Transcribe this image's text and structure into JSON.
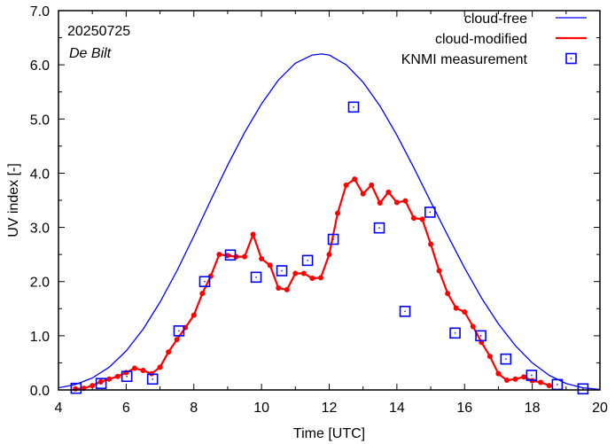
{
  "chart_data": {
    "type": "line",
    "xlabel": "Time  [UTC]",
    "ylabel": "UV index  [-]",
    "xlim": [
      4,
      20
    ],
    "ylim": [
      0,
      7
    ],
    "xticks": [
      4,
      6,
      8,
      10,
      12,
      14,
      16,
      18,
      20
    ],
    "xtick_labels": [
      "4",
      "6",
      "8",
      "10",
      "12",
      "14",
      "16",
      "18",
      "20"
    ],
    "yticks": [
      0,
      1,
      2,
      3,
      4,
      5,
      6,
      7
    ],
    "ytick_labels": [
      "0.0",
      "1.0",
      "2.0",
      "3.0",
      "4.0",
      "5.0",
      "6.0",
      "7.0"
    ],
    "annotations": [
      "20250725",
      "De Bilt"
    ],
    "legend_position": "top-right",
    "colors": {
      "cloud_free": "#0000ff",
      "cloud_modified": "#ff0000",
      "measurement": "#0000ff"
    },
    "series": [
      {
        "name": "cloud-free",
        "style": "line",
        "x": [
          4.0,
          4.5,
          5.0,
          5.5,
          6.0,
          6.5,
          7.0,
          7.5,
          8.0,
          8.5,
          9.0,
          9.5,
          10.0,
          10.5,
          11.0,
          11.5,
          11.77,
          12.0,
          12.5,
          13.0,
          13.5,
          14.0,
          14.5,
          15.0,
          15.5,
          16.0,
          16.5,
          17.0,
          17.5,
          18.0,
          18.5,
          19.0,
          19.5,
          20.0
        ],
        "y": [
          0.04,
          0.1,
          0.22,
          0.42,
          0.72,
          1.12,
          1.62,
          2.2,
          2.84,
          3.5,
          4.15,
          4.75,
          5.28,
          5.72,
          6.03,
          6.18,
          6.2,
          6.18,
          6.0,
          5.68,
          5.24,
          4.7,
          4.1,
          3.47,
          2.85,
          2.25,
          1.7,
          1.22,
          0.82,
          0.5,
          0.27,
          0.12,
          0.04,
          0.01
        ]
      },
      {
        "name": "cloud-modified",
        "style": "line-points",
        "x": [
          4.5,
          4.75,
          5.0,
          5.25,
          5.5,
          5.75,
          6.0,
          6.25,
          6.5,
          6.75,
          7.0,
          7.25,
          7.5,
          7.75,
          8.0,
          8.25,
          8.5,
          8.75,
          9.0,
          9.25,
          9.5,
          9.75,
          10.0,
          10.25,
          10.5,
          10.75,
          11.0,
          11.25,
          11.5,
          11.75,
          12.0,
          12.25,
          12.5,
          12.75,
          13.0,
          13.25,
          13.5,
          13.75,
          14.0,
          14.25,
          14.5,
          14.75,
          15.0,
          15.25,
          15.5,
          15.75,
          16.0,
          16.25,
          16.5,
          16.75,
          17.0,
          17.25,
          17.5,
          17.75,
          18.0,
          18.25,
          18.5
        ],
        "y": [
          0.02,
          0.03,
          0.08,
          0.15,
          0.2,
          0.25,
          0.32,
          0.4,
          0.36,
          0.3,
          0.42,
          0.7,
          0.93,
          1.15,
          1.38,
          1.78,
          2.1,
          2.5,
          2.48,
          2.46,
          2.46,
          2.87,
          2.42,
          2.3,
          1.88,
          1.85,
          2.15,
          2.15,
          2.06,
          2.07,
          2.5,
          3.26,
          3.78,
          3.89,
          3.62,
          3.78,
          3.45,
          3.65,
          3.46,
          3.49,
          3.17,
          3.15,
          2.69,
          2.2,
          1.78,
          1.51,
          1.44,
          1.17,
          0.88,
          0.62,
          0.3,
          0.18,
          0.2,
          0.24,
          0.17,
          0.14,
          0.08
        ]
      },
      {
        "name": "KNMI measurement",
        "style": "markers",
        "x": [
          4.52,
          5.26,
          6.02,
          6.78,
          7.56,
          8.32,
          9.08,
          9.84,
          10.6,
          11.36,
          12.12,
          12.72,
          13.48,
          14.24,
          14.98,
          15.72,
          16.48,
          17.22,
          17.98,
          18.74,
          19.5
        ],
        "y": [
          0.03,
          0.12,
          0.25,
          0.2,
          1.09,
          2.0,
          2.49,
          2.08,
          2.2,
          2.39,
          2.78,
          5.22,
          2.99,
          1.45,
          3.28,
          1.05,
          1.0,
          0.57,
          0.27,
          0.1,
          0.02
        ]
      }
    ]
  }
}
